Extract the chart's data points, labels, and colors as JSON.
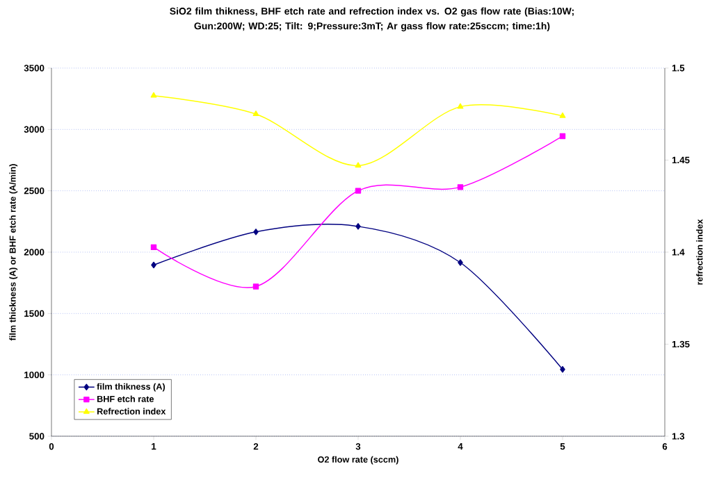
{
  "chart_data": {
    "type": "line",
    "title": "SiO2 film thikness, BHF etch rate and refrection index vs. O2 gas flow rate (Bias:10W; Gun:200W; WD:25; Tilt: 9;Pressure:3mT; Ar gass flow rate:25sccm; time:1h)",
    "xlabel": "O2 flow rate (sccm)",
    "ylabel": "film thickness (A) or BHF etch rate (A/min)",
    "y2label": "refrection index",
    "x": [
      1,
      2,
      3,
      4,
      5
    ],
    "series": [
      {
        "name": "film thikness (A)",
        "color": "#000080",
        "marker": "diamond",
        "values": [
          1895,
          2165,
          2210,
          1915,
          1045
        ]
      },
      {
        "name": "BHF etch rate",
        "color": "#ff00ff",
        "marker": "square",
        "values": [
          2040,
          1720,
          2500,
          2530,
          2945
        ]
      },
      {
        "name": "Refrection index",
        "color": "#ffff00",
        "marker": "triangle",
        "axis": "y2",
        "values": [
          1.485,
          1.475,
          1.447,
          1.479,
          1.474
        ]
      }
    ],
    "xlim": [
      0,
      6
    ],
    "xticks": [
      0,
      1,
      2,
      3,
      4,
      5,
      6
    ],
    "ylim": [
      500,
      3500
    ],
    "yticks": [
      500,
      1000,
      1500,
      2000,
      2500,
      3000,
      3500
    ],
    "y2lim": [
      1.3,
      1.5
    ],
    "y2ticks": [
      1.3,
      1.35,
      1.4,
      1.45,
      1.5
    ],
    "grid": "y",
    "legend": "bottom left"
  }
}
